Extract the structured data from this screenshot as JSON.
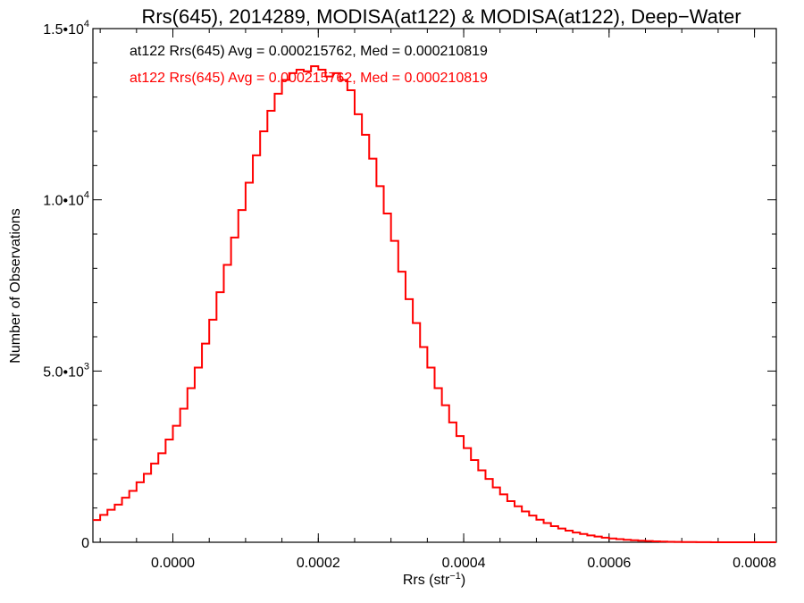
{
  "chart_data": {
    "type": "histogram",
    "title": "Rrs(645), 2014289, MODISA(at122) & MODISA(at122), Deep−Water",
    "xlabel": "Rrs (str",
    "xlabel_sup": "−1",
    "xlabel_end": ")",
    "ylabel": "Number of Observations",
    "xlim": [
      -0.00011,
      0.00083
    ],
    "ylim": [
      0,
      15000
    ],
    "x_ticks": [
      {
        "value": 0.0,
        "label": "0.0000"
      },
      {
        "value": 0.0002,
        "label": "0.0002"
      },
      {
        "value": 0.0004,
        "label": "0.0004"
      },
      {
        "value": 0.0006,
        "label": "0.0006"
      },
      {
        "value": 0.0008,
        "label": "0.0008"
      }
    ],
    "y_ticks": [
      {
        "value": 0,
        "label": "0",
        "sup": ""
      },
      {
        "value": 5000,
        "label": "5.0•10",
        "sup": "3"
      },
      {
        "value": 10000,
        "label": "1.0•10",
        "sup": "4"
      },
      {
        "value": 15000,
        "label": "1.5•10",
        "sup": "4"
      }
    ],
    "annotations": [
      {
        "text": "at122 Rrs(645) Avg = 0.000215762, Med = 0.000210819",
        "color": "#000000"
      },
      {
        "text": "at122 Rrs(645) Avg = 0.000215762, Med = 0.000210819",
        "color": "#ff0000"
      }
    ],
    "series": [
      {
        "color": "#ff0000",
        "x": [
          -0.00011,
          -0.0001,
          -9e-05,
          -8e-05,
          -7e-05,
          -6e-05,
          -5e-05,
          -4e-05,
          -3e-05,
          -2e-05,
          -1e-05,
          0.0,
          1e-05,
          2e-05,
          3e-05,
          4e-05,
          5e-05,
          6e-05,
          7e-05,
          8e-05,
          9e-05,
          0.0001,
          0.00011,
          0.00012,
          0.00013,
          0.00014,
          0.00015,
          0.00016,
          0.00017,
          0.00018,
          0.00019,
          0.0002,
          0.00021,
          0.00022,
          0.00023,
          0.00024,
          0.00025,
          0.00026,
          0.00027,
          0.00028,
          0.00029,
          0.0003,
          0.00031,
          0.00032,
          0.00033,
          0.00034,
          0.00035,
          0.00036,
          0.00037,
          0.00038,
          0.00039,
          0.0004,
          0.00041,
          0.00042,
          0.00043,
          0.00044,
          0.00045,
          0.00046,
          0.00047,
          0.00048,
          0.00049,
          0.0005,
          0.00051,
          0.00052,
          0.00053,
          0.00054,
          0.00055,
          0.00056,
          0.00057,
          0.00058,
          0.00059,
          0.0006,
          0.00061,
          0.00062,
          0.00063,
          0.00064,
          0.00065,
          0.00066,
          0.00067,
          0.00068,
          0.00069,
          0.0007,
          0.00071,
          0.00072,
          0.00073,
          0.00074,
          0.00075,
          0.00076,
          0.00077,
          0.00078,
          0.00079,
          0.0008,
          0.00081,
          0.00082,
          0.00083
        ],
        "y": [
          650,
          800,
          950,
          1100,
          1300,
          1500,
          1750,
          2000,
          2300,
          2600,
          3000,
          3400,
          3900,
          4500,
          5100,
          5800,
          6500,
          7300,
          8100,
          8900,
          9700,
          10500,
          11300,
          12000,
          12600,
          13100,
          13500,
          13700,
          13800,
          13750,
          13900,
          13800,
          13600,
          13700,
          13500,
          13200,
          12500,
          11900,
          11200,
          10400,
          9600,
          8800,
          7900,
          7100,
          6400,
          5700,
          5100,
          4500,
          4000,
          3500,
          3100,
          2750,
          2400,
          2100,
          1850,
          1600,
          1400,
          1200,
          1050,
          900,
          780,
          660,
          560,
          470,
          400,
          340,
          285,
          240,
          200,
          165,
          135,
          110,
          90,
          72,
          58,
          45,
          35,
          26,
          19,
          14,
          10,
          7,
          5,
          3,
          2,
          1,
          1,
          0,
          0,
          0,
          0,
          0,
          0,
          0,
          0
        ]
      }
    ]
  }
}
